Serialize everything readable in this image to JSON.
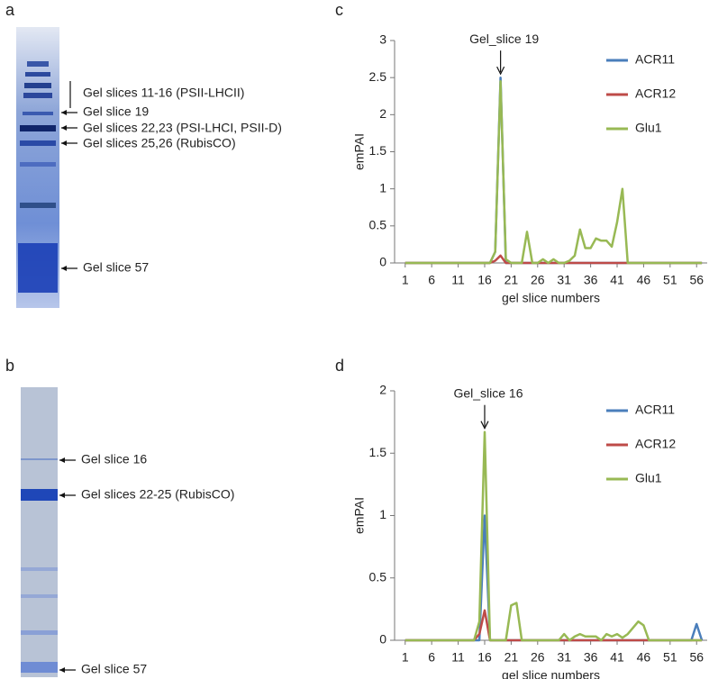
{
  "panels": {
    "a": {
      "label": "a",
      "annotations": [
        "Gel slices 11-16 (PSII-LHCII)",
        "Gel slice 19",
        "Gel slices 22,23 (PSI-LHCI, PSII-D)",
        "Gel slices 25,26 (RubisCO)",
        "Gel slice 57"
      ]
    },
    "b": {
      "label": "b",
      "annotations": [
        "Gel slice 16",
        "Gel slices 22-25 (RubisCO)",
        "Gel slice 57"
      ]
    }
  },
  "chart_data": [
    {
      "type": "line",
      "panel_label": "c",
      "x_label": "gel slice numbers",
      "y_label": "emPAI",
      "x": [
        1,
        2,
        3,
        4,
        5,
        6,
        7,
        8,
        9,
        10,
        11,
        12,
        13,
        14,
        15,
        16,
        17,
        18,
        19,
        20,
        21,
        22,
        23,
        24,
        25,
        26,
        27,
        28,
        29,
        30,
        31,
        32,
        33,
        34,
        35,
        36,
        37,
        38,
        39,
        40,
        41,
        42,
        43,
        44,
        45,
        46,
        47,
        48,
        49,
        50,
        51,
        52,
        53,
        54,
        55,
        56,
        57
      ],
      "xlim": [
        -1,
        58
      ],
      "xticks": [
        1,
        6,
        11,
        16,
        21,
        26,
        31,
        36,
        41,
        46,
        51,
        56
      ],
      "ylim": [
        0,
        3
      ],
      "yticks": [
        0,
        0.5,
        1,
        1.5,
        2,
        2.5,
        3
      ],
      "legend": "upper right",
      "annotation": {
        "text": "Gel_slice 19",
        "x": 19
      },
      "series": [
        {
          "name": "ACR11",
          "color": "#4a7ebb",
          "values": [
            0,
            0,
            0,
            0,
            0,
            0,
            0,
            0,
            0,
            0,
            0,
            0,
            0,
            0,
            0,
            0,
            0,
            0.15,
            2.5,
            0,
            0,
            0,
            0,
            0,
            0,
            0,
            0,
            0,
            0,
            0,
            0,
            0,
            0,
            0,
            0,
            0,
            0,
            0,
            0,
            0,
            0,
            0,
            0,
            0,
            0,
            0,
            0,
            0,
            0,
            0,
            0,
            0,
            0,
            0,
            0,
            0,
            0
          ]
        },
        {
          "name": "ACR12",
          "color": "#be4b48",
          "values": [
            0,
            0,
            0,
            0,
            0,
            0,
            0,
            0,
            0,
            0,
            0,
            0,
            0,
            0,
            0,
            0,
            0,
            0.03,
            0.1,
            0,
            0,
            0,
            0,
            0,
            0,
            0,
            0,
            0,
            0,
            0,
            0,
            0,
            0,
            0,
            0,
            0,
            0,
            0,
            0,
            0,
            0,
            0,
            0,
            0,
            0,
            0,
            0,
            0,
            0,
            0,
            0,
            0,
            0,
            0,
            0,
            0,
            0
          ]
        },
        {
          "name": "Glu1",
          "color": "#98b954",
          "values": [
            0,
            0,
            0,
            0,
            0,
            0,
            0,
            0,
            0,
            0,
            0,
            0,
            0,
            0,
            0,
            0,
            0,
            0.15,
            2.45,
            0.05,
            0,
            0,
            0,
            0.42,
            0,
            0,
            0.05,
            0,
            0.05,
            0,
            0,
            0.03,
            0.1,
            0.45,
            0.2,
            0.2,
            0.33,
            0.3,
            0.3,
            0.22,
            0.55,
            1.0,
            0,
            0,
            0,
            0,
            0,
            0,
            0,
            0,
            0,
            0,
            0,
            0,
            0,
            0,
            0
          ]
        }
      ]
    },
    {
      "type": "line",
      "panel_label": "d",
      "x_label": "gel slice numbers",
      "y_label": "emPAI",
      "x": [
        1,
        2,
        3,
        4,
        5,
        6,
        7,
        8,
        9,
        10,
        11,
        12,
        13,
        14,
        15,
        16,
        17,
        18,
        19,
        20,
        21,
        22,
        23,
        24,
        25,
        26,
        27,
        28,
        29,
        30,
        31,
        32,
        33,
        34,
        35,
        36,
        37,
        38,
        39,
        40,
        41,
        42,
        43,
        44,
        45,
        46,
        47,
        48,
        49,
        50,
        51,
        52,
        53,
        54,
        55,
        56,
        57
      ],
      "xlim": [
        -1,
        58
      ],
      "xticks": [
        1,
        6,
        11,
        16,
        21,
        26,
        31,
        36,
        41,
        46,
        51,
        56
      ],
      "ylim": [
        0,
        2
      ],
      "yticks": [
        0,
        0.5,
        1,
        1.5,
        2
      ],
      "legend": "upper right",
      "annotation": {
        "text": "Gel_slice 16",
        "x": 16
      },
      "series": [
        {
          "name": "ACR11",
          "color": "#4a7ebb",
          "values": [
            0,
            0,
            0,
            0,
            0,
            0,
            0,
            0,
            0,
            0,
            0,
            0,
            0,
            0,
            0,
            1.0,
            0,
            0,
            0,
            0,
            0,
            0,
            0,
            0,
            0,
            0,
            0,
            0,
            0,
            0,
            0,
            0,
            0,
            0,
            0,
            0,
            0,
            0,
            0,
            0,
            0,
            0,
            0,
            0,
            0,
            0,
            0,
            0,
            0,
            0,
            0,
            0,
            0,
            0,
            0,
            0.13,
            0
          ]
        },
        {
          "name": "ACR12",
          "color": "#be4b48",
          "values": [
            0,
            0,
            0,
            0,
            0,
            0,
            0,
            0,
            0,
            0,
            0,
            0,
            0,
            0,
            0.05,
            0.24,
            0,
            0,
            0,
            0,
            0,
            0,
            0,
            0,
            0,
            0,
            0,
            0,
            0,
            0,
            0,
            0,
            0,
            0,
            0,
            0,
            0,
            0,
            0,
            0,
            0,
            0,
            0,
            0,
            0,
            0,
            0,
            0,
            0,
            0,
            0,
            0,
            0,
            0,
            0,
            0,
            0
          ]
        },
        {
          "name": "Glu1",
          "color": "#98b954",
          "values": [
            0,
            0,
            0,
            0,
            0,
            0,
            0,
            0,
            0,
            0,
            0,
            0,
            0,
            0,
            0.15,
            1.67,
            0,
            0,
            0,
            0,
            0.28,
            0.3,
            0,
            0,
            0,
            0,
            0,
            0,
            0,
            0,
            0.05,
            0,
            0.03,
            0.05,
            0.03,
            0.03,
            0.03,
            0,
            0.05,
            0.03,
            0.05,
            0.02,
            0.05,
            0.1,
            0.15,
            0.12,
            0,
            0,
            0,
            0,
            0,
            0,
            0,
            0,
            0,
            0,
            0
          ]
        }
      ]
    }
  ]
}
